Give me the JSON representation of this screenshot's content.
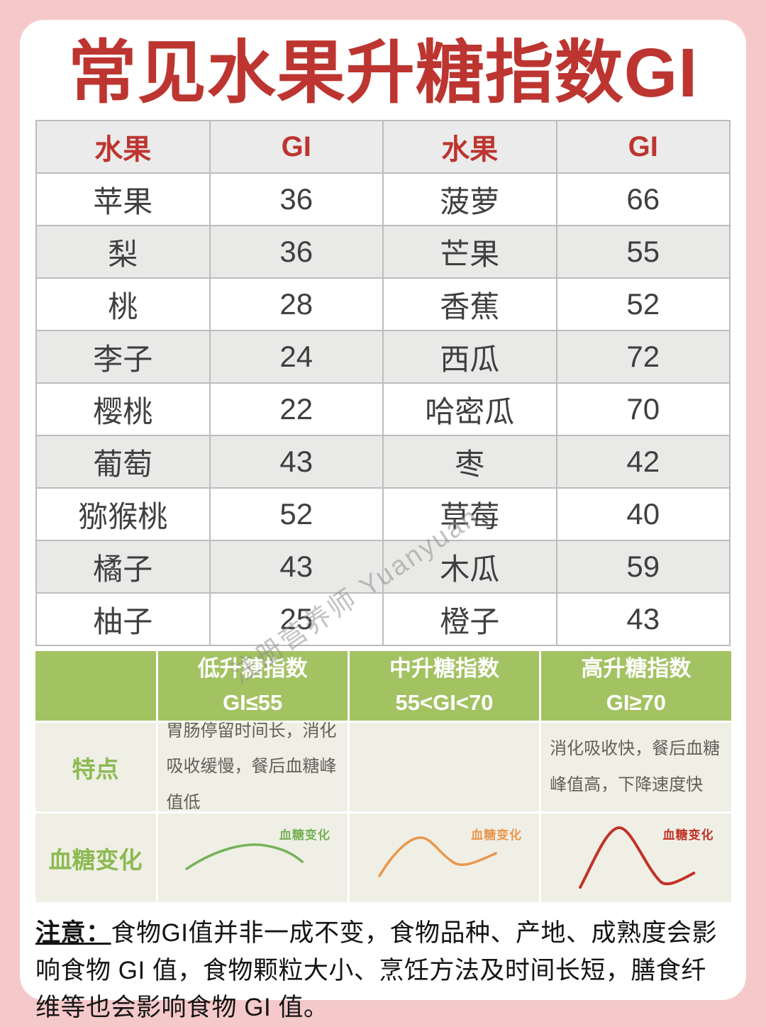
{
  "title": "常见水果升糖指数GI",
  "watermark": "注册营养师 Yuanyuan",
  "colors": {
    "page_bg": "#f5c9ca",
    "card_bg": "#ffffff",
    "title_red": "#bd3530",
    "table_border": "#bdbdbd",
    "header_row_bg": "#ebebeb",
    "alt_row_bg": "#e9e9e8",
    "table_text": "#3f3f3f",
    "green_header_bg": "#a3c262",
    "beige_cell_bg": "#f0efe6",
    "label_green": "#8cba52",
    "curve_low": "#76b258",
    "curve_mid": "#e8974d",
    "curve_high": "#c23227"
  },
  "gi_table": {
    "headers": [
      "水果",
      "GI",
      "水果",
      "GI"
    ],
    "rows": [
      [
        "苹果",
        "36",
        "菠萝",
        "66"
      ],
      [
        "梨",
        "36",
        "芒果",
        "55"
      ],
      [
        "桃",
        "28",
        "香蕉",
        "52"
      ],
      [
        "李子",
        "24",
        "西瓜",
        "72"
      ],
      [
        "樱桃",
        "22",
        "哈密瓜",
        "70"
      ],
      [
        "葡萄",
        "43",
        "枣",
        "42"
      ],
      [
        "猕猴桃",
        "52",
        "草莓",
        "40"
      ],
      [
        "橘子",
        "43",
        "木瓜",
        "59"
      ],
      [
        "柚子",
        "25",
        "橙子",
        "43"
      ]
    ]
  },
  "category_table": {
    "row_labels": {
      "feature": "特点",
      "curve": "血糖变化"
    },
    "columns": [
      {
        "title": "低升糖指数",
        "range": "GI≤55",
        "feature": "胃肠停留时间长，消化吸收缓慢，餐后血糖峰值低",
        "curve_label": "血糖变化",
        "color": "#76b258"
      },
      {
        "title": "中升糖指数",
        "range": "55<GI<70",
        "feature": "",
        "curve_label": "血糖变化",
        "color": "#e8974d"
      },
      {
        "title": "高升糖指数",
        "range": "GI≥70",
        "feature": "消化吸收快，餐后血糖峰值高，下降速度快",
        "curve_label": "血糖变化",
        "color": "#c23227"
      }
    ]
  },
  "note": {
    "label": "注意：",
    "text": "食物GI值并非一成不变，食物品种、产地、成熟度会影响食物 GI 值，食物颗粒大小、烹饪方法及时间长短，膳食纤维等也会影响食物 GI 值。"
  }
}
